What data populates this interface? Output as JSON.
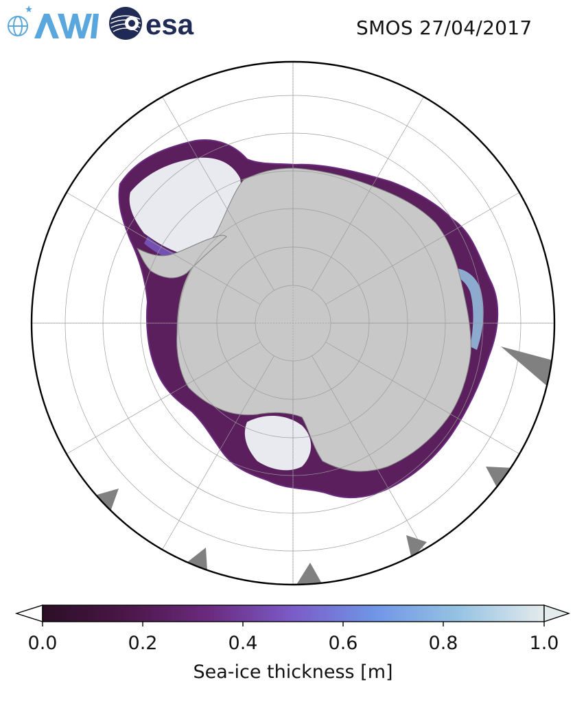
{
  "header": {
    "title": "SMOS 27/04/2017",
    "logos": {
      "awi": {
        "text": "AWI",
        "icon": "awi-logo"
      },
      "esa": {
        "text": "esa",
        "icon": "esa-logo"
      }
    }
  },
  "map": {
    "projection": "south-polar-stereographic",
    "colors": {
      "land": "#c8c8c8",
      "land_edge": "#7f7f7f",
      "ocean": "#ffffff",
      "boundary": "#000000",
      "grid": "#9a9a9a"
    }
  },
  "colorbar": {
    "label": "Sea-ice thickness [m]",
    "ticks": [
      "0.0",
      "0.2",
      "0.4",
      "0.6",
      "0.8",
      "1.0"
    ],
    "range": [
      0.0,
      1.0
    ],
    "extend": "both",
    "colormap": [
      "#2b0f26",
      "#4a1646",
      "#6a2a7e",
      "#7b5cc8",
      "#6f95e6",
      "#96c3e3",
      "#e4ebec"
    ]
  }
}
